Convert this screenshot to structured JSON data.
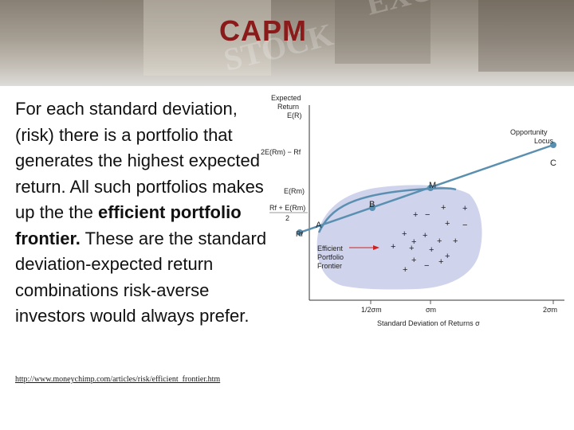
{
  "slide": {
    "title": "CAPM",
    "body_lead": "For each standard deviation, (risk) there is a portfolio that generates the highest expected return.  All such portfolios makes up the the ",
    "body_emphasis": "efficient portfolio frontier.",
    "body_tail": " These are the standard deviation-expected return combinations risk-averse investors would always prefer.",
    "link_text": "http://www.moneychimp.com/articles/risk/efficient_frontier.htm"
  },
  "diagram": {
    "y_axis_title_line1": "Expected",
    "y_axis_title_line2": "Return",
    "y_axis_title_line3": "E(R)",
    "y_tick_2e": "2E(Rm) − Rf",
    "y_tick_erm": "E(Rm)",
    "y_tick_half_top": "Rf + E(Rm)",
    "y_tick_half_bottom": "2",
    "y_tick_rf": "Rf",
    "x_tick_half": "1/2σm",
    "x_tick_m": "σm",
    "x_tick_2": "2σm",
    "x_axis_title": "Standard Deviation of Returns σ",
    "locus_label_line1": "Opportunity",
    "locus_label_line2": "Locus",
    "frontier_label_line1": "Efficient",
    "frontier_label_line2": "Portfolio",
    "frontier_label_line3": "Frontier",
    "point_a": "A",
    "point_b": "B",
    "point_m": "M",
    "point_c": "C",
    "colors": {
      "line": "#5b8fb0",
      "point": "#5b8fb0",
      "region": "#cfd3ec",
      "arrow": "#cc2222",
      "title": "#8b1a1a"
    }
  }
}
